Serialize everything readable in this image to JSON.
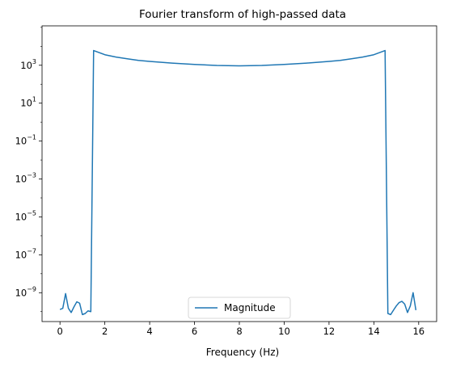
{
  "chart_data": {
    "type": "line",
    "title": "Fourier transform of high-passed data",
    "xlabel": "Frequency (Hz)",
    "ylabel": "",
    "xscale": "linear",
    "yscale": "log",
    "xlim": [
      -0.8,
      16.8
    ],
    "ylim": [
      3e-11,
      120000.0
    ],
    "grid": false,
    "legend_position": "lower center",
    "line_color": "#1f77b4",
    "x_ticks": [
      {
        "value": 0,
        "label": "0"
      },
      {
        "value": 2,
        "label": "2"
      },
      {
        "value": 4,
        "label": "4"
      },
      {
        "value": 6,
        "label": "6"
      },
      {
        "value": 8,
        "label": "8"
      },
      {
        "value": 10,
        "label": "10"
      },
      {
        "value": 12,
        "label": "12"
      },
      {
        "value": 14,
        "label": "14"
      },
      {
        "value": 16,
        "label": "16"
      }
    ],
    "y_ticks": [
      {
        "value": 1e-09,
        "base": "10",
        "exp": "−9"
      },
      {
        "value": 1e-07,
        "base": "10",
        "exp": "−7"
      },
      {
        "value": 1e-05,
        "base": "10",
        "exp": "−5"
      },
      {
        "value": 0.001,
        "base": "10",
        "exp": "−3"
      },
      {
        "value": 0.1,
        "base": "10",
        "exp": "−1"
      },
      {
        "value": 10,
        "base": "10",
        "exp": "1"
      },
      {
        "value": 1000,
        "base": "10",
        "exp": "3"
      }
    ],
    "series": [
      {
        "name": "Magnitude",
        "x": [
          0.0,
          0.125,
          0.25,
          0.375,
          0.5,
          0.625,
          0.75,
          0.875,
          1.0,
          1.125,
          1.25,
          1.375,
          1.5,
          2.0,
          2.5,
          3.0,
          3.5,
          4.0,
          5.0,
          6.0,
          7.0,
          8.0,
          9.0,
          10.0,
          11.0,
          12.0,
          12.5,
          13.0,
          13.5,
          14.0,
          14.5,
          14.625,
          14.75,
          14.875,
          15.0,
          15.125,
          15.25,
          15.375,
          15.5,
          15.625,
          15.75,
          15.875
        ],
        "y": [
          1.3e-10,
          1.5e-10,
          9e-10,
          1.5e-10,
          9e-11,
          1.8e-10,
          3.3e-10,
          2.8e-10,
          7e-11,
          8e-11,
          1.1e-10,
          1e-10,
          6000,
          3600,
          2700,
          2200,
          1800,
          1600,
          1300,
          1100,
          980,
          930,
          980,
          1100,
          1300,
          1600,
          1800,
          2200,
          2700,
          3600,
          6000,
          8e-11,
          7e-11,
          1.2e-10,
          2e-10,
          3e-10,
          3.5e-10,
          2.5e-10,
          9e-11,
          2e-10,
          1e-09,
          1.2e-10
        ]
      }
    ]
  }
}
